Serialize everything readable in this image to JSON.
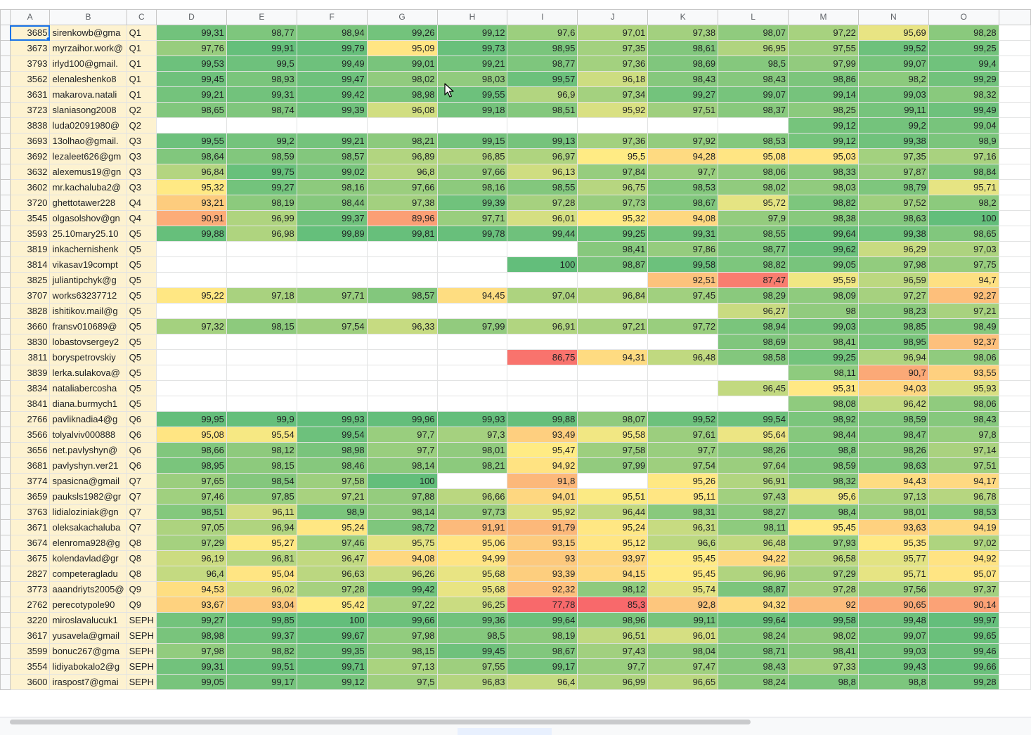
{
  "columns": [
    "A",
    "B",
    "C",
    "D",
    "E",
    "F",
    "G",
    "H",
    "I",
    "J",
    "K",
    "L",
    "M",
    "N",
    "O"
  ],
  "colors": {
    "green": "#63be7b",
    "yellow": "#ffeb84",
    "red": "#f8696b",
    "header_bg": "#f8f9fa",
    "label_bg": "#fdf2d0",
    "selection": "#1a73e8"
  },
  "selected_cell": "A1",
  "rows": [
    {
      "id": "3685",
      "email": "sirenkowb@gma",
      "group": "Q1",
      "values": [
        "99,31",
        "98,77",
        "98,94",
        "99,26",
        "99,12",
        "97,6",
        "97,01",
        "97,38",
        "98,07",
        "97,22",
        "95,69",
        "98,28"
      ]
    },
    {
      "id": "3673",
      "email": "myrzaihor.work@",
      "group": "Q1",
      "values": [
        "97,76",
        "99,91",
        "99,79",
        "95,09",
        "99,73",
        "98,95",
        "97,35",
        "98,61",
        "96,95",
        "97,55",
        "99,52",
        "99,25"
      ]
    },
    {
      "id": "3793",
      "email": "irlyd100@gmail.",
      "group": "Q1",
      "values": [
        "99,53",
        "99,5",
        "99,49",
        "99,01",
        "99,21",
        "98,77",
        "97,36",
        "98,69",
        "98,5",
        "97,99",
        "99,07",
        "99,4"
      ]
    },
    {
      "id": "3562",
      "email": "elenaleshenko8",
      "group": "Q1",
      "values": [
        "99,45",
        "98,93",
        "99,47",
        "98,02",
        "98,03",
        "99,57",
        "96,18",
        "98,43",
        "98,43",
        "98,86",
        "98,2",
        "99,29"
      ]
    },
    {
      "id": "3631",
      "email": "makarova.natali",
      "group": "Q1",
      "values": [
        "99,21",
        "99,31",
        "99,42",
        "98,98",
        "99,55",
        "96,9",
        "97,34",
        "99,27",
        "99,07",
        "99,14",
        "99,03",
        "98,32"
      ]
    },
    {
      "id": "3723",
      "email": "slaniasong2008",
      "group": "Q2",
      "values": [
        "98,65",
        "98,74",
        "99,39",
        "96,08",
        "99,18",
        "98,51",
        "95,92",
        "97,51",
        "98,37",
        "98,25",
        "99,11",
        "99,49"
      ]
    },
    {
      "id": "3838",
      "email": "luda02091980@",
      "group": "Q2",
      "values": [
        "",
        "",
        "",
        "",
        "",
        "",
        "",
        "",
        "",
        "99,12",
        "99,2",
        "99,04"
      ]
    },
    {
      "id": "3693",
      "email": "13olhao@gmail.",
      "group": "Q3",
      "values": [
        "99,55",
        "99,2",
        "99,21",
        "98,21",
        "99,15",
        "99,13",
        "97,36",
        "97,92",
        "98,53",
        "99,12",
        "99,38",
        "98,9"
      ]
    },
    {
      "id": "3692",
      "email": "lezaleet626@gm",
      "group": "Q3",
      "values": [
        "98,64",
        "98,59",
        "98,57",
        "96,89",
        "96,85",
        "96,97",
        "95,5",
        "94,28",
        "95,08",
        "95,03",
        "97,35",
        "97,16"
      ]
    },
    {
      "id": "3632",
      "email": "alexemus19@gn",
      "group": "Q3",
      "values": [
        "96,84",
        "99,75",
        "99,02",
        "96,8",
        "97,66",
        "96,13",
        "97,84",
        "97,7",
        "98,06",
        "98,33",
        "97,87",
        "98,84"
      ]
    },
    {
      "id": "3602",
      "email": "mr.kachaluba2@",
      "group": "Q3",
      "values": [
        "95,32",
        "99,27",
        "98,16",
        "97,66",
        "98,16",
        "98,55",
        "96,75",
        "98,53",
        "98,02",
        "98,03",
        "98,79",
        "95,71"
      ]
    },
    {
      "id": "3720",
      "email": "ghettotawer228",
      "group": "Q4",
      "values": [
        "93,21",
        "98,19",
        "98,44",
        "97,38",
        "99,39",
        "97,28",
        "97,73",
        "98,67",
        "95,72",
        "98,82",
        "97,52",
        "98,2"
      ]
    },
    {
      "id": "3545",
      "email": "olgasolshov@gn",
      "group": "Q4",
      "values": [
        "90,91",
        "96,99",
        "99,37",
        "89,96",
        "97,71",
        "96,01",
        "95,32",
        "94,08",
        "97,9",
        "98,38",
        "98,63",
        "100"
      ]
    },
    {
      "id": "3593",
      "email": "25.10mary25.10",
      "group": "Q5",
      "values": [
        "99,88",
        "96,98",
        "99,89",
        "99,81",
        "99,78",
        "99,44",
        "99,25",
        "99,31",
        "98,55",
        "99,64",
        "99,38",
        "98,65"
      ]
    },
    {
      "id": "3819",
      "email": "inkachernishenk",
      "group": "Q5",
      "values": [
        "",
        "",
        "",
        "",
        "",
        "",
        "98,41",
        "97,86",
        "98,77",
        "99,62",
        "96,29",
        "97,03"
      ]
    },
    {
      "id": "3814",
      "email": "vikasav19compt",
      "group": "Q5",
      "values": [
        "",
        "",
        "",
        "",
        "",
        "100",
        "98,87",
        "99,58",
        "98,82",
        "99,05",
        "97,98",
        "97,75"
      ]
    },
    {
      "id": "3825",
      "email": "juliantipchyk@g",
      "group": "Q5",
      "values": [
        "",
        "",
        "",
        "",
        "",
        "",
        "",
        "92,51",
        "87,47",
        "95,59",
        "96,59",
        "94,7"
      ]
    },
    {
      "id": "3707",
      "email": "works63237712",
      "group": "Q5",
      "values": [
        "95,22",
        "97,18",
        "97,71",
        "98,57",
        "94,45",
        "97,04",
        "96,84",
        "97,45",
        "98,29",
        "98,09",
        "97,27",
        "92,27"
      ]
    },
    {
      "id": "3828",
      "email": "ishitikov.mail@g",
      "group": "Q5",
      "values": [
        "",
        "",
        "",
        "",
        "",
        "",
        "",
        "",
        "96,27",
        "98",
        "98,23",
        "97,21"
      ]
    },
    {
      "id": "3660",
      "email": "fransv010689@",
      "group": "Q5",
      "values": [
        "97,32",
        "98,15",
        "97,54",
        "96,33",
        "97,99",
        "96,91",
        "97,21",
        "97,72",
        "98,94",
        "99,03",
        "98,85",
        "98,49"
      ]
    },
    {
      "id": "3830",
      "email": "lobastovsergey2",
      "group": "Q5",
      "values": [
        "",
        "",
        "",
        "",
        "",
        "",
        "",
        "",
        "98,69",
        "98,41",
        "98,95",
        "92,37"
      ]
    },
    {
      "id": "3811",
      "email": "boryspetrovskiy",
      "group": "Q5",
      "values": [
        "",
        "",
        "",
        "",
        "",
        "86,75",
        "94,31",
        "96,48",
        "98,58",
        "99,25",
        "96,94",
        "98,06"
      ]
    },
    {
      "id": "3839",
      "email": "lerka.sulakova@",
      "group": "Q5",
      "values": [
        "",
        "",
        "",
        "",
        "",
        "",
        "",
        "",
        "",
        "98,11",
        "90,7",
        "93,55"
      ]
    },
    {
      "id": "3834",
      "email": "nataliabercosha",
      "group": "Q5",
      "values": [
        "",
        "",
        "",
        "",
        "",
        "",
        "",
        "",
        "96,45",
        "95,31",
        "94,03",
        "95,93"
      ]
    },
    {
      "id": "3841",
      "email": "diana.burmych1",
      "group": "Q5",
      "values": [
        "",
        "",
        "",
        "",
        "",
        "",
        "",
        "",
        "",
        "98,08",
        "96,42",
        "98,06"
      ]
    },
    {
      "id": "2766",
      "email": "pavliknadia4@g",
      "group": "Q6",
      "values": [
        "99,95",
        "99,9",
        "99,93",
        "99,96",
        "99,93",
        "99,88",
        "98,07",
        "99,52",
        "99,54",
        "98,92",
        "98,59",
        "98,43"
      ]
    },
    {
      "id": "3566",
      "email": "tolyalviv000888",
      "group": "Q6",
      "values": [
        "95,08",
        "95,54",
        "99,54",
        "97,7",
        "97,3",
        "93,49",
        "95,58",
        "97,61",
        "95,64",
        "98,44",
        "98,47",
        "97,8"
      ]
    },
    {
      "id": "3656",
      "email": "net.pavlyshyn@",
      "group": "Q6",
      "values": [
        "98,66",
        "98,12",
        "98,98",
        "97,7",
        "98,01",
        "95,47",
        "97,58",
        "97,7",
        "98,26",
        "98,8",
        "98,26",
        "97,14"
      ]
    },
    {
      "id": "3681",
      "email": "pavlyshyn.ver21",
      "group": "Q6",
      "values": [
        "98,95",
        "98,15",
        "98,46",
        "98,14",
        "98,21",
        "94,92",
        "97,99",
        "97,54",
        "97,64",
        "98,59",
        "98,63",
        "97,51"
      ]
    },
    {
      "id": "3774",
      "email": "spasicna@gmail",
      "group": "Q7",
      "values": [
        "97,65",
        "98,54",
        "97,58",
        "100",
        "",
        "91,8",
        "",
        "95,26",
        "96,91",
        "98,32",
        "94,43",
        "94,17"
      ]
    },
    {
      "id": "3659",
      "email": "pauksls1982@gr",
      "group": "Q7",
      "values": [
        "97,46",
        "97,85",
        "97,21",
        "97,88",
        "96,66",
        "94,01",
        "95,51",
        "95,11",
        "97,43",
        "95,6",
        "97,13",
        "96,78"
      ]
    },
    {
      "id": "3763",
      "email": "lidialoziniak@gn",
      "group": "Q7",
      "values": [
        "98,51",
        "96,11",
        "98,9",
        "98,14",
        "97,73",
        "95,92",
        "96,44",
        "98,31",
        "98,27",
        "98,4",
        "98,01",
        "98,53"
      ]
    },
    {
      "id": "3671",
      "email": "oleksakachaluba",
      "group": "Q7",
      "values": [
        "97,05",
        "96,94",
        "95,24",
        "98,72",
        "91,91",
        "91,79",
        "95,24",
        "96,31",
        "98,11",
        "95,45",
        "93,63",
        "94,19"
      ]
    },
    {
      "id": "3674",
      "email": "elenroma928@g",
      "group": "Q8",
      "values": [
        "97,29",
        "95,27",
        "97,46",
        "95,75",
        "95,06",
        "93,15",
        "95,12",
        "96,6",
        "96,48",
        "97,93",
        "95,35",
        "97,02"
      ]
    },
    {
      "id": "3675",
      "email": "kolendavlad@gr",
      "group": "Q8",
      "values": [
        "96,19",
        "96,81",
        "96,47",
        "94,08",
        "94,99",
        "93",
        "93,97",
        "95,45",
        "94,22",
        "96,58",
        "95,77",
        "94,92"
      ]
    },
    {
      "id": "2827",
      "email": "competeragladu",
      "group": "Q8",
      "values": [
        "96,4",
        "95,04",
        "96,63",
        "96,26",
        "95,68",
        "93,39",
        "94,15",
        "95,45",
        "96,96",
        "97,29",
        "95,71",
        "95,07"
      ]
    },
    {
      "id": "3773",
      "email": "aaandriyts2005@",
      "group": "Q9",
      "values": [
        "94,53",
        "96,02",
        "97,28",
        "99,42",
        "95,68",
        "92,32",
        "98,12",
        "95,74",
        "98,87",
        "97,28",
        "97,56",
        "97,37"
      ]
    },
    {
      "id": "2762",
      "email": "perecotypole90",
      "group": "Q9",
      "values": [
        "93,67",
        "93,04",
        "95,42",
        "97,22",
        "96,25",
        "77,78",
        "85,3",
        "92,8",
        "94,32",
        "92",
        "90,65",
        "90,14"
      ]
    },
    {
      "id": "3220",
      "email": "miroslavalucuk1",
      "group": "SEPH",
      "values": [
        "99,27",
        "99,85",
        "100",
        "99,66",
        "99,36",
        "99,64",
        "98,96",
        "99,11",
        "99,64",
        "99,58",
        "99,48",
        "99,97"
      ]
    },
    {
      "id": "3617",
      "email": "yusavela@gmail",
      "group": "SEPH",
      "values": [
        "98,98",
        "99,37",
        "99,67",
        "97,98",
        "98,5",
        "98,19",
        "96,51",
        "96,01",
        "98,24",
        "98,02",
        "99,07",
        "99,65"
      ]
    },
    {
      "id": "3599",
      "email": "bonuc267@gma",
      "group": "SEPH",
      "values": [
        "97,98",
        "98,82",
        "99,35",
        "98,15",
        "99,45",
        "98,67",
        "97,43",
        "98,04",
        "98,71",
        "98,41",
        "99,03",
        "99,46"
      ]
    },
    {
      "id": "3554",
      "email": "lidiyabokalo2@g",
      "group": "SEPH",
      "values": [
        "99,31",
        "99,51",
        "99,71",
        "97,13",
        "97,55",
        "99,17",
        "97,7",
        "97,47",
        "98,43",
        "97,33",
        "99,43",
        "99,66"
      ]
    },
    {
      "id": "3600",
      "email": "iraspost7@gmai",
      "group": "SEPH",
      "values": [
        "99,05",
        "99,17",
        "99,12",
        "97,5",
        "96,83",
        "96,4",
        "96,99",
        "96,65",
        "98,24",
        "98,8",
        "98,8",
        "99,28"
      ]
    }
  ]
}
